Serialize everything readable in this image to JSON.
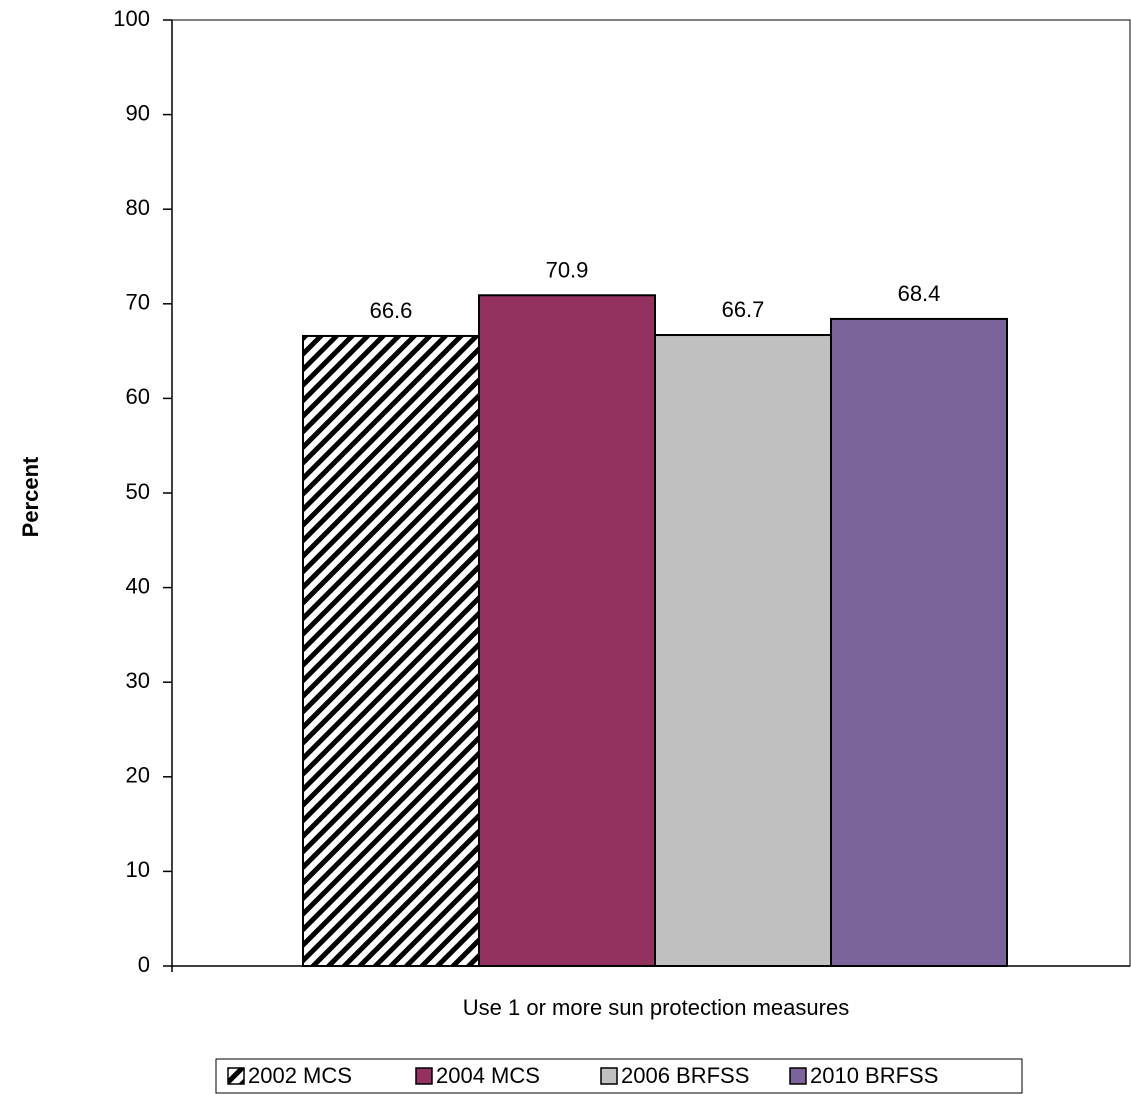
{
  "chart_data": {
    "type": "bar",
    "categories": [
      "Use 1 or more sun protection measures"
    ],
    "series": [
      {
        "name": "2002 MCS",
        "values": [
          66.6
        ],
        "color": "#ffffff",
        "pattern": "diagonal-stripes"
      },
      {
        "name": "2004 MCS",
        "values": [
          70.9
        ],
        "color": "#93325e"
      },
      {
        "name": "2006 BRFSS",
        "values": [
          66.7
        ],
        "color": "#c0c0c0"
      },
      {
        "name": "2010 BRFSS",
        "values": [
          68.4
        ],
        "color": "#7b639b"
      }
    ],
    "ylabel": "Percent",
    "xlabel": "",
    "ylim": [
      0,
      100
    ],
    "yticks": [
      0,
      10,
      20,
      30,
      40,
      50,
      60,
      70,
      80,
      90,
      100
    ],
    "grid": false,
    "legend_position": "bottom",
    "data_labels": [
      "66.6",
      "70.9",
      "66.7",
      "68.4"
    ]
  }
}
